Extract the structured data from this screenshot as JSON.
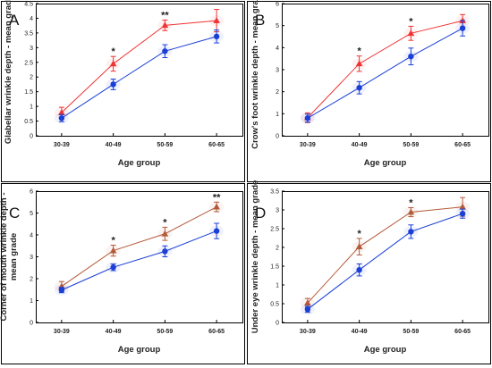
{
  "chart_data": [
    {
      "type": "line",
      "panel_label": "A",
      "xlabel": "Age group",
      "ylabel": "Glabellar wrinkle depth - mean grade",
      "categories": [
        "30-39",
        "40-49",
        "50-59",
        "60-65"
      ],
      "ylim": [
        0,
        4.5
      ],
      "yticks": [
        "0",
        "0.5",
        "1",
        "1.5",
        "2",
        "2.5",
        "3",
        "3.5",
        "4",
        "4.5"
      ],
      "grid": false,
      "significance": [
        "",
        "*",
        "**",
        ""
      ],
      "series": [
        {
          "color": "#ee3333",
          "marker": "triangle",
          "values": [
            0.79,
            2.45,
            3.76,
            3.92
          ],
          "errors": [
            0.18,
            0.25,
            0.18,
            0.38
          ]
        },
        {
          "color": "#1a3fd6",
          "marker": "circle",
          "values": [
            0.6,
            1.75,
            2.88,
            3.38
          ],
          "errors": [
            0.12,
            0.18,
            0.22,
            0.22
          ]
        }
      ]
    },
    {
      "type": "line",
      "panel_label": "B",
      "xlabel": "Age group",
      "ylabel": "Crow's foot wrinkle depth - mean grade",
      "categories": [
        "30-39",
        "40-49",
        "50-59",
        "60-65"
      ],
      "ylim": [
        0,
        6
      ],
      "yticks": [
        "0",
        "1",
        "2",
        "3",
        "4",
        "5",
        "6"
      ],
      "grid": false,
      "significance": [
        "",
        "*",
        "*",
        ""
      ],
      "series": [
        {
          "color": "#ee3333",
          "marker": "triangle",
          "values": [
            0.82,
            3.27,
            4.65,
            5.22
          ],
          "errors": [
            0.22,
            0.35,
            0.32,
            0.28
          ]
        },
        {
          "color": "#1a3fd6",
          "marker": "circle",
          "values": [
            0.8,
            2.18,
            3.6,
            4.88
          ],
          "errors": [
            0.18,
            0.28,
            0.38,
            0.35
          ]
        }
      ]
    },
    {
      "type": "line",
      "panel_label": "C",
      "xlabel": "Age group",
      "ylabel": "Corner of mouth wrinkle depth - mean grade",
      "categories": [
        "30-39",
        "40-49",
        "50-59",
        "60-65"
      ],
      "ylim": [
        0,
        6
      ],
      "yticks": [
        "0",
        "1",
        "2",
        "3",
        "4",
        "5",
        "6"
      ],
      "grid": false,
      "significance": [
        "",
        "*",
        "*",
        "**"
      ],
      "series": [
        {
          "color": "#b35a38",
          "marker": "triangle",
          "values": [
            1.65,
            3.28,
            4.05,
            5.28
          ],
          "errors": [
            0.22,
            0.25,
            0.3,
            0.22
          ]
        },
        {
          "color": "#1a3fd6",
          "marker": "circle",
          "values": [
            1.48,
            2.52,
            3.25,
            4.18
          ],
          "errors": [
            0.12,
            0.15,
            0.25,
            0.35
          ]
        }
      ]
    },
    {
      "type": "line",
      "panel_label": "D",
      "xlabel": "Age group",
      "ylabel": "Under eye wrinkle depth - mean grade",
      "categories": [
        "30-39",
        "40-49",
        "50-59",
        "60-65"
      ],
      "ylim": [
        0,
        3.5
      ],
      "yticks": [
        "0",
        "0.5",
        "1",
        "1.5",
        "2",
        "2.5",
        "3",
        "3.5"
      ],
      "grid": false,
      "significance": [
        "",
        "*",
        "*",
        ""
      ],
      "series": [
        {
          "color": "#b35a38",
          "marker": "triangle",
          "values": [
            0.52,
            2.02,
            2.94,
            3.08
          ],
          "errors": [
            0.12,
            0.22,
            0.12,
            0.25
          ]
        },
        {
          "color": "#1a3fd6",
          "marker": "circle",
          "values": [
            0.35,
            1.4,
            2.42,
            2.9
          ],
          "errors": [
            0.08,
            0.16,
            0.18,
            0.12
          ]
        }
      ]
    }
  ]
}
